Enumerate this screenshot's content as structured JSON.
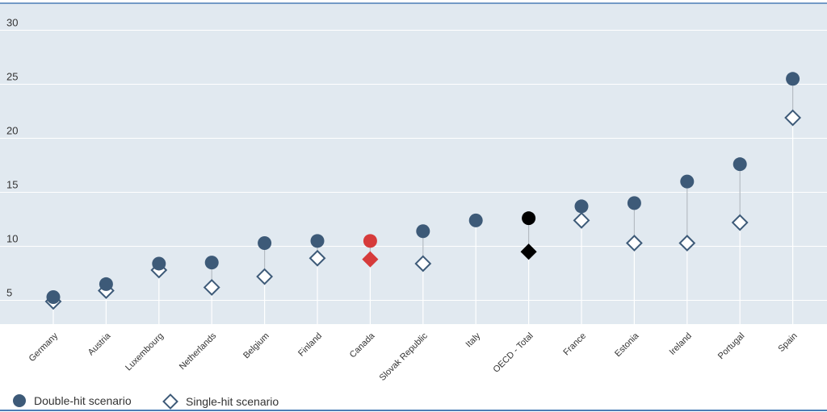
{
  "chart_data": {
    "type": "scatter",
    "title": "",
    "xlabel": "",
    "ylabel": "",
    "ylim": [
      2.8,
      32.5
    ],
    "yticks": [
      5,
      10,
      15,
      20,
      25,
      30
    ],
    "grid": true,
    "legend_position": "bottom-left",
    "categories": [
      "Germany",
      "Austria",
      "Luxembourg",
      "Netherlands",
      "Belgium",
      "Finland",
      "Canada",
      "Slovak Republic",
      "Italy",
      "OECD - Total",
      "France",
      "Estonia",
      "Ireland",
      "Portugal",
      "Spain"
    ],
    "highlight": {
      "Canada": "#d63b3b",
      "OECD - Total": "#000000"
    },
    "series": [
      {
        "name": "Double-hit scenario",
        "marker": "circle",
        "color": "#3d5a78",
        "values": [
          5.3,
          6.5,
          8.4,
          8.5,
          10.3,
          10.5,
          10.5,
          11.4,
          12.4,
          12.6,
          13.7,
          14.0,
          16.0,
          17.6,
          25.5
        ]
      },
      {
        "name": "Single-hit scenario",
        "marker": "diamond",
        "color": "#3d5a78",
        "values": [
          4.9,
          5.9,
          7.8,
          6.2,
          7.2,
          8.9,
          8.8,
          8.4,
          null,
          9.5,
          12.4,
          10.3,
          10.3,
          12.2,
          21.9
        ]
      }
    ],
    "colors": {
      "plot_bg": "#e1e9f0",
      "grid": "#ffffff",
      "stem": "#ffffff",
      "stem_gap": "#b5bcc3",
      "marker": "#3d5a78",
      "border": "#4a7db5"
    }
  }
}
